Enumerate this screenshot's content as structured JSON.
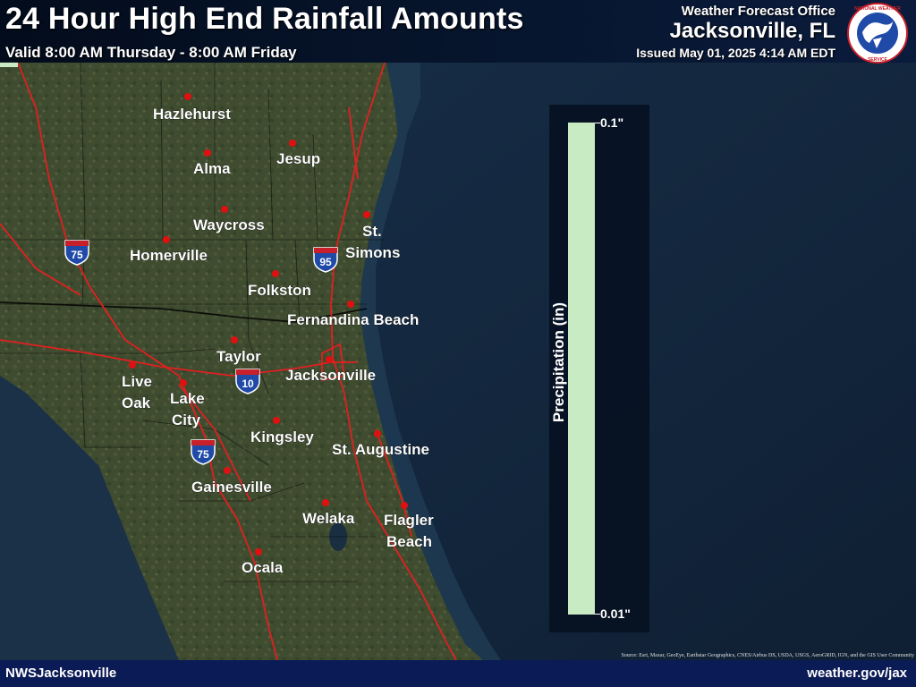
{
  "header": {
    "title": "24 Hour High End Rainfall Amounts",
    "valid": "Valid 8:00 AM Thursday - 8:00 AM Friday",
    "office_label": "Weather Forecast Office",
    "office_city": "Jacksonville, FL",
    "issued": "Issued May 01, 2025 4:14 AM EDT",
    "logo_text": "NATIONAL WEATHER SERVICE"
  },
  "legend": {
    "title": "Precipitation (in)",
    "max_label": "0.1\"",
    "min_label": "0.01\"",
    "color": "#c8ebc4"
  },
  "cities": [
    {
      "name": "Hazlehurst"
    },
    {
      "name": "Alma"
    },
    {
      "name": "Jesup"
    },
    {
      "name": "Waycross"
    },
    {
      "name": "St. Simons"
    },
    {
      "name": "Homerville"
    },
    {
      "name": "Folkston"
    },
    {
      "name": "Fernandina Beach"
    },
    {
      "name": "Taylor"
    },
    {
      "name": "Jacksonville"
    },
    {
      "name": "Live Oak"
    },
    {
      "name": "Lake City"
    },
    {
      "name": "Kingsley"
    },
    {
      "name": "St. Augustine"
    },
    {
      "name": "Gainesville"
    },
    {
      "name": "Welaka"
    },
    {
      "name": "Flagler Beach"
    },
    {
      "name": "Ocala"
    }
  ],
  "highways": [
    {
      "number": "75"
    },
    {
      "number": "95"
    },
    {
      "number": "10"
    },
    {
      "number": "75"
    }
  ],
  "footer": {
    "left": "NWSJacksonville",
    "right": "weather.gov/jax"
  },
  "source": "Source: Esri, Maxar, GeoEye, Earthstar Geographics, CNES/Airbus DS, USDA, USGS, AeroGRID, IGN, and the GIS User Community",
  "colors": {
    "ocean": "#14263c",
    "land": "#3c4a2e",
    "roads": "#e02020",
    "city_dot": "#e01010",
    "footer_bar": "#0b1b55"
  }
}
